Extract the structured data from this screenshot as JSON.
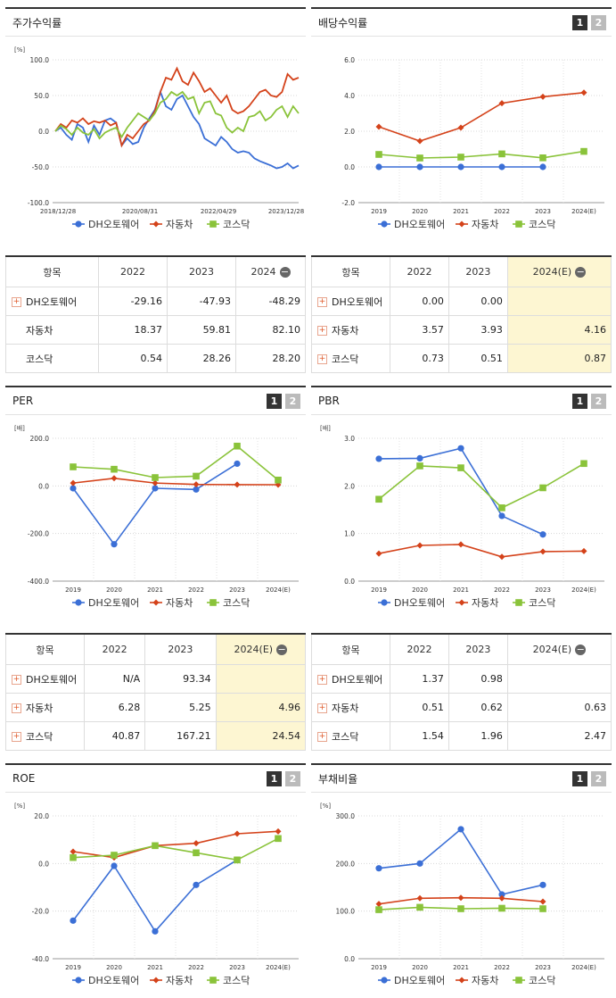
{
  "series_names": [
    "DH오토웨어",
    "자동차",
    "코스닥"
  ],
  "colors": {
    "dh": "#3b6fd6",
    "auto": "#d4421a",
    "kosdaq": "#8ac33a"
  },
  "pager": [
    "1",
    "2"
  ],
  "panels": {
    "stock": {
      "title": "주가수익률"
    },
    "div": {
      "title": "배당수익률"
    },
    "per": {
      "title": "PER"
    },
    "pbr": {
      "title": "PBR"
    },
    "roe": {
      "title": "ROE"
    },
    "debt": {
      "title": "부채비율"
    }
  },
  "tables": {
    "stock": {
      "header": [
        "항목",
        "2022",
        "2023",
        "2024"
      ],
      "rows": [
        [
          "DH오토웨어",
          "-29.16",
          "-47.93",
          "-48.29"
        ],
        [
          "자동차",
          "18.37",
          "59.81",
          "82.10"
        ],
        [
          "코스닥",
          "0.54",
          "28.26",
          "28.20"
        ]
      ]
    },
    "div": {
      "header": [
        "항목",
        "2022",
        "2023",
        "2024(E)"
      ],
      "rows": [
        [
          "DH오토웨어",
          "0.00",
          "0.00",
          ""
        ],
        [
          "자동차",
          "3.57",
          "3.93",
          "4.16"
        ],
        [
          "코스닥",
          "0.73",
          "0.51",
          "0.87"
        ]
      ]
    },
    "per": {
      "header": [
        "항목",
        "2022",
        "2023",
        "2024(E)"
      ],
      "rows": [
        [
          "DH오토웨어",
          "N/A",
          "93.34",
          ""
        ],
        [
          "자동차",
          "6.28",
          "5.25",
          "4.96"
        ],
        [
          "코스닥",
          "40.87",
          "167.21",
          "24.54"
        ]
      ]
    },
    "pbr": {
      "header": [
        "항목",
        "2022",
        "2023",
        "2024(E)"
      ],
      "rows": [
        [
          "DH오토웨어",
          "1.37",
          "0.98",
          ""
        ],
        [
          "자동차",
          "0.51",
          "0.62",
          "0.63"
        ],
        [
          "코스닥",
          "1.54",
          "1.96",
          "2.47"
        ]
      ]
    }
  },
  "chart_data": [
    {
      "id": "stock",
      "type": "line",
      "unit": "[%]",
      "ylim": [
        -100,
        100
      ],
      "yticks": [
        "100.0",
        "50.0",
        "0.0",
        "-50.0",
        "-100.0"
      ],
      "xticks": [
        "2018/12/28",
        "2020/08/31",
        "2022/04/29",
        "2023/12/28"
      ],
      "series": [
        {
          "name": "DH오토웨어",
          "values": [
            0,
            5,
            -5,
            -12,
            10,
            5,
            -15,
            8,
            -5,
            15,
            18,
            12,
            -20,
            -10,
            -18,
            -15,
            5,
            18,
            30,
            55,
            35,
            30,
            45,
            50,
            35,
            20,
            10,
            -10,
            -15,
            -20,
            -8,
            -15,
            -25,
            -30,
            -28,
            -30,
            -38,
            -42,
            -45,
            -48,
            -52,
            -50,
            -45,
            -52,
            -48
          ]
        },
        {
          "name": "자동차",
          "values": [
            0,
            10,
            5,
            15,
            12,
            18,
            10,
            14,
            12,
            15,
            8,
            12,
            -20,
            -5,
            -10,
            0,
            10,
            15,
            28,
            55,
            75,
            72,
            88,
            70,
            65,
            82,
            70,
            55,
            60,
            50,
            40,
            50,
            30,
            25,
            28,
            35,
            45,
            55,
            58,
            50,
            48,
            55,
            80,
            72,
            75
          ]
        },
        {
          "name": "코스닥",
          "values": [
            0,
            8,
            3,
            -5,
            5,
            -2,
            -5,
            3,
            -10,
            -2,
            2,
            5,
            -8,
            5,
            15,
            25,
            20,
            15,
            25,
            40,
            45,
            55,
            50,
            55,
            45,
            48,
            25,
            40,
            42,
            25,
            22,
            5,
            -2,
            5,
            0,
            20,
            22,
            28,
            15,
            20,
            30,
            35,
            20,
            35,
            25
          ]
        }
      ]
    },
    {
      "id": "div",
      "type": "line",
      "unit": "",
      "ylim": [
        -2,
        6
      ],
      "yticks": [
        "6.0",
        "4.0",
        "2.0",
        "0.0",
        "-2.0"
      ],
      "x": [
        "2019",
        "2020",
        "2021",
        "2022",
        "2023",
        "2024(E)"
      ],
      "series": [
        {
          "name": "DH오토웨어",
          "values": [
            0,
            0,
            0,
            0,
            0,
            null
          ]
        },
        {
          "name": "자동차",
          "values": [
            2.25,
            1.45,
            2.2,
            3.57,
            3.93,
            4.16
          ]
        },
        {
          "name": "코스닥",
          "values": [
            0.7,
            0.5,
            0.55,
            0.73,
            0.51,
            0.87
          ]
        }
      ]
    },
    {
      "id": "per",
      "type": "line",
      "unit": "[배]",
      "ylim": [
        -400,
        200
      ],
      "yticks": [
        "200.0",
        "0.0",
        "-200.0",
        "-400.0"
      ],
      "x": [
        "2019",
        "2020",
        "2021",
        "2022",
        "2023",
        "2024(E)"
      ],
      "series": [
        {
          "name": "DH오토웨어",
          "values": [
            -10,
            -245,
            -10,
            -15,
            93.34,
            null
          ]
        },
        {
          "name": "자동차",
          "values": [
            12,
            32,
            12,
            6.28,
            5.25,
            4.96
          ]
        },
        {
          "name": "코스닥",
          "values": [
            80,
            70,
            35,
            40.87,
            167.21,
            24.54
          ]
        }
      ]
    },
    {
      "id": "pbr",
      "type": "line",
      "unit": "[배]",
      "ylim": [
        0,
        3
      ],
      "yticks": [
        "3.0",
        "2.0",
        "1.0",
        "0.0"
      ],
      "x": [
        "2019",
        "2020",
        "2021",
        "2022",
        "2023",
        "2024(E)"
      ],
      "series": [
        {
          "name": "DH오토웨어",
          "values": [
            2.57,
            2.58,
            2.79,
            1.37,
            0.98,
            null
          ]
        },
        {
          "name": "자동차",
          "values": [
            0.58,
            0.75,
            0.77,
            0.51,
            0.62,
            0.63
          ]
        },
        {
          "name": "코스닥",
          "values": [
            1.72,
            2.42,
            2.38,
            1.54,
            1.96,
            2.47
          ]
        }
      ]
    },
    {
      "id": "roe",
      "type": "line",
      "unit": "[%]",
      "ylim": [
        -40,
        20
      ],
      "yticks": [
        "20.0",
        "0.0",
        "-20.0",
        "-40.0"
      ],
      "x": [
        "2019",
        "2020",
        "2021",
        "2022",
        "2023",
        "2024(E)"
      ],
      "series": [
        {
          "name": "DH오토웨어",
          "values": [
            -24,
            -1,
            -28.5,
            -9,
            1.5,
            null
          ]
        },
        {
          "name": "자동차",
          "values": [
            5,
            2.5,
            7.5,
            8.5,
            12.5,
            13.5
          ]
        },
        {
          "name": "코스닥",
          "values": [
            2.5,
            3.5,
            7.5,
            4.5,
            1.5,
            10.5
          ]
        }
      ]
    },
    {
      "id": "debt",
      "type": "line",
      "unit": "[%]",
      "ylim": [
        0,
        300
      ],
      "yticks": [
        "300.0",
        "200.0",
        "100.0",
        "0.0"
      ],
      "x": [
        "2019",
        "2020",
        "2021",
        "2022",
        "2023",
        "2024(E)"
      ],
      "series": [
        {
          "name": "DH오토웨어",
          "values": [
            190,
            200,
            272,
            135,
            155,
            null
          ]
        },
        {
          "name": "자동차",
          "values": [
            115,
            127,
            128,
            127,
            120,
            null
          ]
        },
        {
          "name": "코스닥",
          "values": [
            103,
            108,
            105,
            106,
            105,
            null
          ]
        }
      ]
    }
  ]
}
